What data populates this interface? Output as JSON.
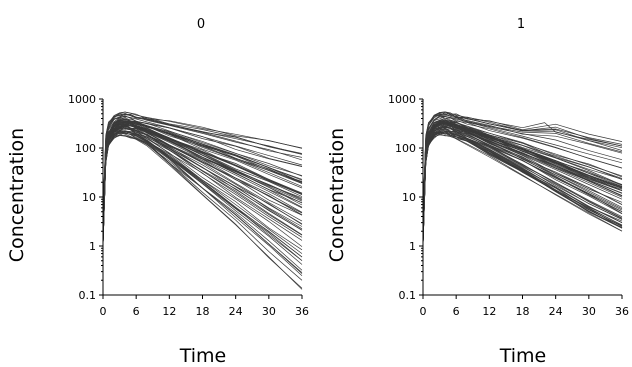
{
  "chart_data": [
    {
      "type": "line",
      "title": "0",
      "xlabel": "Time",
      "ylabel": "Concentration",
      "xlim": [
        0,
        36
      ],
      "ylim": [
        0.1,
        1000
      ],
      "yscale": "log",
      "xticks": [
        0,
        6,
        12,
        18,
        24,
        30,
        36
      ],
      "yticks": [
        0.1,
        1,
        10,
        100,
        1000
      ],
      "ytick_labels": [
        "0.1",
        "1",
        "10",
        "100",
        "1000"
      ],
      "grid": false,
      "series_color": "#3a3a3a",
      "series": [
        {
          "x": [
            0,
            0.5,
            1,
            2,
            3,
            4,
            5,
            6,
            8,
            12,
            18,
            24,
            30,
            36
          ],
          "y": [
            5,
            180,
            320,
            460,
            520,
            540,
            510,
            470,
            420,
            350,
            250,
            190,
            140,
            100
          ]
        },
        {
          "x": [
            0,
            0.5,
            1,
            2,
            3,
            4,
            5,
            6,
            8,
            12,
            18,
            24,
            30,
            36
          ],
          "y": [
            3,
            120,
            250,
            380,
            430,
            440,
            420,
            390,
            340,
            260,
            170,
            110,
            70,
            45
          ]
        },
        {
          "x": [
            0,
            0.5,
            1,
            2,
            3,
            4,
            5,
            6,
            8,
            12,
            18,
            24,
            30,
            36
          ],
          "y": [
            2,
            90,
            200,
            320,
            370,
            380,
            360,
            330,
            280,
            200,
            120,
            70,
            40,
            22
          ]
        },
        {
          "x": [
            0,
            0.5,
            1,
            2,
            3,
            4,
            5,
            6,
            8,
            12,
            18,
            24,
            30,
            36
          ],
          "y": [
            2,
            80,
            180,
            280,
            330,
            340,
            320,
            290,
            240,
            160,
            85,
            45,
            23,
            12
          ]
        },
        {
          "x": [
            0,
            0.5,
            1,
            2,
            3,
            4,
            5,
            6,
            8,
            12,
            18,
            24,
            30,
            36
          ],
          "y": [
            1.5,
            70,
            160,
            250,
            300,
            305,
            290,
            260,
            210,
            130,
            60,
            28,
            13,
            6
          ]
        },
        {
          "x": [
            0,
            0.5,
            1,
            2,
            3,
            4,
            5,
            6,
            8,
            12,
            18,
            24,
            30,
            36
          ],
          "y": [
            1.2,
            60,
            140,
            220,
            260,
            270,
            255,
            230,
            180,
            100,
            40,
            16,
            6,
            2.5
          ]
        },
        {
          "x": [
            0,
            0.5,
            1,
            2,
            3,
            4,
            5,
            6,
            8,
            12,
            18,
            24,
            30,
            36
          ],
          "y": [
            1,
            55,
            120,
            190,
            220,
            225,
            210,
            190,
            140,
            70,
            22,
            7,
            2.2,
            0.7
          ]
        },
        {
          "x": [
            0,
            0.5,
            1,
            2,
            3,
            4,
            5,
            6,
            8,
            12,
            18,
            24,
            30,
            36
          ],
          "y": [
            1,
            50,
            110,
            170,
            180,
            175,
            165,
            150,
            110,
            45,
            11,
            2.7,
            0.6,
            0.13
          ]
        }
      ]
    },
    {
      "type": "line",
      "title": "1",
      "xlabel": "Time",
      "ylabel": "Concentration",
      "xlim": [
        0,
        36
      ],
      "ylim": [
        0.1,
        1000
      ],
      "yscale": "log",
      "xticks": [
        0,
        6,
        12,
        18,
        24,
        30,
        36
      ],
      "yticks": [
        0.1,
        1,
        10,
        100,
        1000
      ],
      "ytick_labels": [
        "0.1",
        "1",
        "10",
        "100",
        "1000"
      ],
      "grid": false,
      "series_color": "#3a3a3a",
      "series": [
        {
          "x": [
            0,
            0.5,
            1,
            2,
            3,
            4,
            5,
            6,
            8,
            12,
            18,
            22,
            24,
            30,
            36
          ],
          "y": [
            5,
            180,
            320,
            460,
            520,
            540,
            510,
            470,
            420,
            350,
            260,
            330,
            210,
            150,
            110
          ]
        },
        {
          "x": [
            0,
            0.5,
            1,
            2,
            3,
            4,
            5,
            6,
            8,
            12,
            18,
            24,
            30,
            36
          ],
          "y": [
            3,
            120,
            250,
            380,
            430,
            440,
            420,
            390,
            340,
            260,
            175,
            115,
            75,
            50
          ]
        },
        {
          "x": [
            0,
            0.5,
            1,
            2,
            3,
            4,
            5,
            6,
            8,
            12,
            18,
            24,
            30,
            36
          ],
          "y": [
            2,
            90,
            200,
            320,
            370,
            380,
            360,
            330,
            280,
            200,
            125,
            75,
            45,
            27
          ]
        },
        {
          "x": [
            0,
            0.5,
            1,
            2,
            3,
            4,
            5,
            6,
            8,
            12,
            18,
            24,
            30,
            36
          ],
          "y": [
            2,
            80,
            180,
            280,
            330,
            340,
            320,
            290,
            240,
            165,
            95,
            52,
            28,
            16
          ]
        },
        {
          "x": [
            0,
            0.5,
            1,
            2,
            3,
            4,
            5,
            6,
            8,
            12,
            18,
            24,
            30,
            36
          ],
          "y": [
            1.5,
            70,
            160,
            250,
            300,
            305,
            290,
            260,
            215,
            140,
            72,
            36,
            18,
            9
          ]
        },
        {
          "x": [
            0,
            0.5,
            1,
            2,
            3,
            4,
            5,
            6,
            8,
            12,
            18,
            24,
            30,
            36
          ],
          "y": [
            1.2,
            60,
            140,
            220,
            260,
            270,
            255,
            230,
            185,
            115,
            55,
            25,
            11,
            5
          ]
        },
        {
          "x": [
            0,
            0.5,
            1,
            2,
            3,
            4,
            5,
            6,
            8,
            12,
            18,
            24,
            30,
            36
          ],
          "y": [
            1,
            55,
            120,
            190,
            220,
            225,
            210,
            190,
            150,
            90,
            38,
            16,
            6.5,
            3
          ]
        },
        {
          "x": [
            0,
            0.5,
            1,
            2,
            3,
            4,
            5,
            6,
            8,
            12,
            18,
            24,
            30,
            36
          ],
          "y": [
            1,
            50,
            110,
            170,
            185,
            180,
            170,
            155,
            120,
            70,
            28,
            11,
            4.5,
            2
          ]
        }
      ]
    }
  ]
}
